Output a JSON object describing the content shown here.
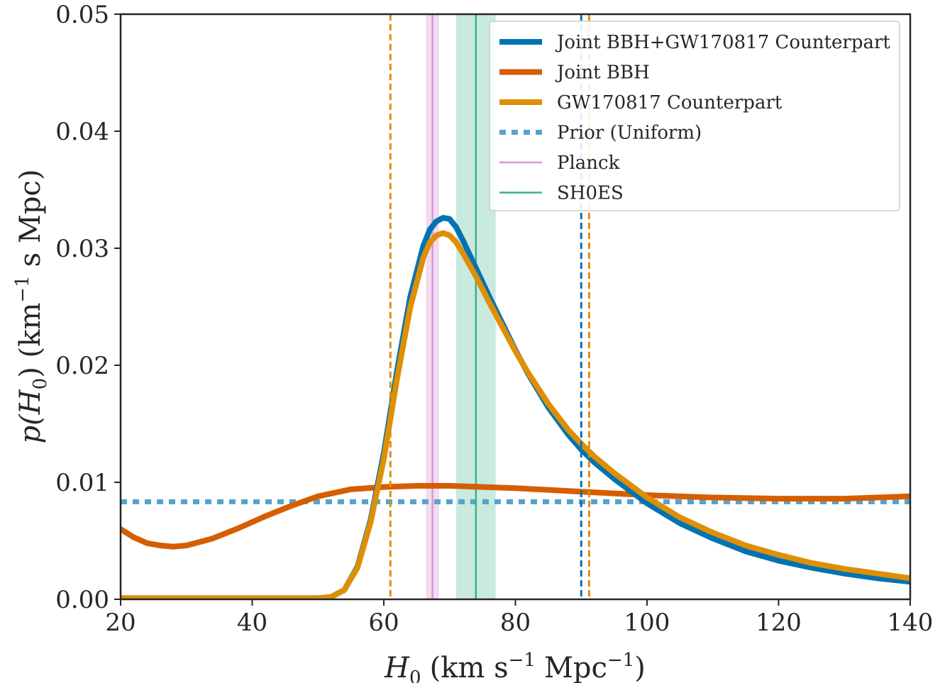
{
  "chart_data": {
    "type": "line",
    "title": "",
    "xlabel": {
      "main": "H",
      "sub": "0",
      "units_a": "(km s",
      "sup_a": "−1",
      "units_b": "Mpc",
      "sup_b": "−1",
      "close": ")"
    },
    "ylabel": {
      "prefix": "p(H",
      "sub": "0",
      "units_a": ") (km",
      "sup_a": "−1",
      "units_b": "s Mpc)"
    },
    "xlim": [
      20,
      140
    ],
    "ylim": [
      0,
      0.05
    ],
    "xticks": [
      "20",
      "40",
      "60",
      "80",
      "100",
      "120",
      "140"
    ],
    "yticks": [
      "0.00",
      "0.01",
      "0.02",
      "0.03",
      "0.04",
      "0.05"
    ],
    "grid": false,
    "legend_position": "top-right",
    "colors": {
      "joint": "#0173b2",
      "bbh": "#d55e00",
      "counterpart": "#de8f05",
      "prior": "#56a3cc",
      "planck": "#d896d6",
      "planck_band": "#f3dcef",
      "shoes": "#3fae8e",
      "shoes_band": "#c8eadf"
    },
    "bands": [
      {
        "series": "Planck",
        "center": 67.4,
        "low": 66.4,
        "high": 68.4
      },
      {
        "series": "SH0ES",
        "center": 74.0,
        "low": 71.0,
        "high": 77.0
      }
    ],
    "dashed_lines": [
      {
        "series": "GW170817 Counterpart",
        "x": 61.0
      },
      {
        "series": "Joint BBH+GW170817 Counterpart",
        "x": 90.0
      },
      {
        "series": "GW170817 Counterpart",
        "x": 91.2
      }
    ],
    "series": [
      {
        "name": "Joint BBH+GW170817 Counterpart",
        "color": "#0173b2",
        "x": [
          20,
          50,
          52,
          54,
          56,
          58,
          60,
          62,
          64,
          66,
          67,
          68,
          69,
          70,
          71,
          72,
          74,
          76,
          78,
          80,
          82,
          85,
          88,
          90,
          92,
          95,
          100,
          105,
          110,
          115,
          120,
          125,
          130,
          135,
          140
        ],
        "y": [
          0.0001,
          0.0001,
          0.0002,
          0.0008,
          0.0028,
          0.0068,
          0.0125,
          0.0195,
          0.0258,
          0.0302,
          0.0316,
          0.0323,
          0.0326,
          0.0325,
          0.0318,
          0.0307,
          0.0283,
          0.0259,
          0.0236,
          0.0213,
          0.0192,
          0.0164,
          0.0141,
          0.0128,
          0.0117,
          0.0103,
          0.0082,
          0.0065,
          0.0052,
          0.0041,
          0.0033,
          0.0027,
          0.0022,
          0.0018,
          0.0015
        ]
      },
      {
        "name": "Joint BBH",
        "color": "#d55e00",
        "x": [
          20,
          22,
          24,
          26,
          28,
          30,
          34,
          38,
          42,
          46,
          50,
          55,
          60,
          65,
          70,
          75,
          80,
          90,
          100,
          110,
          120,
          130,
          140
        ],
        "y": [
          0.006,
          0.0053,
          0.0048,
          0.0046,
          0.0045,
          0.0046,
          0.0052,
          0.0061,
          0.0071,
          0.008,
          0.0088,
          0.0094,
          0.0096,
          0.0097,
          0.0097,
          0.0096,
          0.0095,
          0.0092,
          0.0089,
          0.0087,
          0.0086,
          0.0086,
          0.0088
        ]
      },
      {
        "name": "GW170817 Counterpart",
        "color": "#de8f05",
        "x": [
          20,
          50,
          52,
          54,
          56,
          58,
          60,
          62,
          64,
          66,
          67,
          68,
          69,
          70,
          71,
          72,
          74,
          76,
          78,
          80,
          82,
          85,
          88,
          90,
          92,
          95,
          100,
          105,
          110,
          115,
          120,
          125,
          130,
          135,
          140
        ],
        "y": [
          0.0001,
          0.0001,
          0.0002,
          0.0008,
          0.0027,
          0.0066,
          0.012,
          0.0188,
          0.0249,
          0.0292,
          0.0305,
          0.0311,
          0.0313,
          0.0311,
          0.0305,
          0.0296,
          0.0276,
          0.0254,
          0.0233,
          0.0212,
          0.0193,
          0.0167,
          0.0145,
          0.0133,
          0.0122,
          0.0108,
          0.0087,
          0.007,
          0.0057,
          0.0046,
          0.0038,
          0.0031,
          0.0026,
          0.0022,
          0.0018
        ]
      },
      {
        "name": "Prior (Uniform)",
        "color": "#56a3cc",
        "x": [
          20,
          140
        ],
        "y": [
          0.00833,
          0.00833
        ]
      },
      {
        "name": "Planck",
        "color": "#d896d6",
        "x": [
          67.4,
          67.4
        ],
        "y": [
          0,
          0.05
        ]
      },
      {
        "name": "SH0ES",
        "color": "#3fae8e",
        "x": [
          74.0,
          74.0
        ],
        "y": [
          0,
          0.05
        ]
      }
    ]
  }
}
